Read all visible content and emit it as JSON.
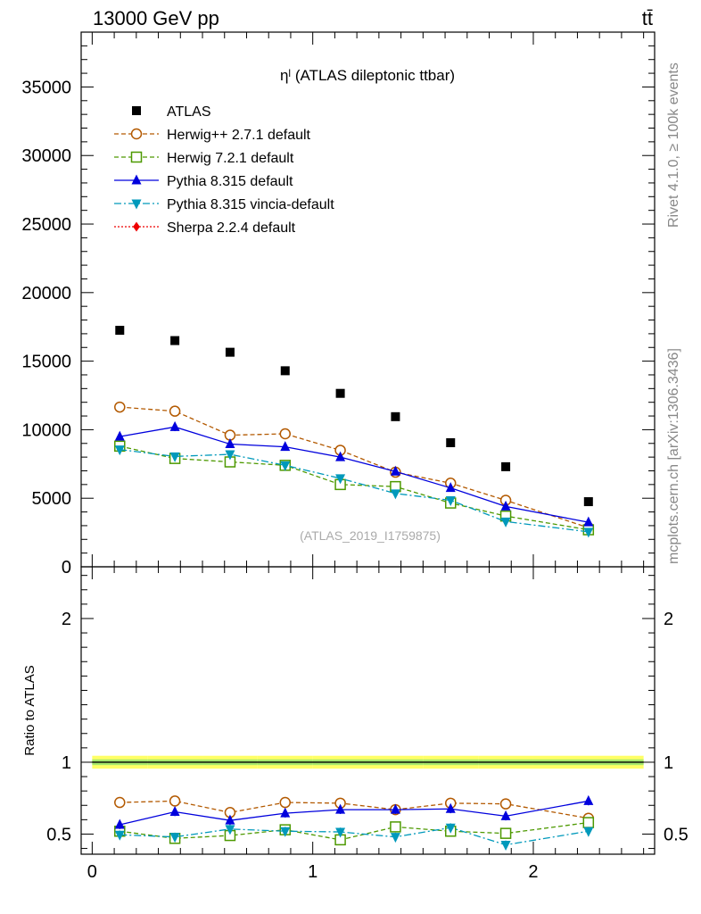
{
  "header": {
    "left": "13000 GeV pp",
    "right": "tt̄"
  },
  "side_text": {
    "rivet": "Rivet 4.1.0, ≥ 100k events",
    "site": "mcplots.cern.ch [arXiv:1306.3436]"
  },
  "chart_data": {
    "type": "scatter",
    "title": "ηˡ (ATLAS dileptonic ttbar)",
    "watermark": "(ATLAS_2019_I1759875)",
    "xlabel": "",
    "ylabel_main": "",
    "ylabel_ratio": "Ratio to ATLAS",
    "xlim": [
      -0.05,
      2.55
    ],
    "ylim_main": [
      0,
      39000
    ],
    "ylim_ratio": [
      0.36,
      2.36
    ],
    "x_ticks": [
      0,
      1,
      2
    ],
    "x_tick_labels": [
      "0",
      "1",
      "2"
    ],
    "y_ticks_main": [
      0,
      5000,
      10000,
      15000,
      20000,
      25000,
      30000,
      35000
    ],
    "y_tick_labels_main": [
      "0",
      "5000",
      "10000",
      "15000",
      "20000",
      "25000",
      "30000",
      "35000"
    ],
    "y_ticks_ratio": [
      0.5,
      1,
      2
    ],
    "y_tick_labels_ratio": [
      "0.5",
      "1",
      "2"
    ],
    "x": [
      0.125,
      0.375,
      0.625,
      0.875,
      1.125,
      1.375,
      1.625,
      1.875,
      2.25
    ],
    "x_edges": [
      0,
      0.25,
      0.5,
      0.75,
      1.0,
      1.25,
      1.5,
      1.75,
      2.0,
      2.5
    ],
    "data": {
      "name": "ATLAS",
      "values": [
        17250,
        16500,
        15650,
        14300,
        12650,
        10950,
        9050,
        7300,
        4750
      ]
    },
    "series": [
      {
        "name": "Herwig++ 2.7.1 default",
        "color": "#b35900",
        "marker": "circle-open",
        "dash": "5,3",
        "values": [
          11650,
          11350,
          9600,
          9700,
          8500,
          6900,
          6100,
          4850,
          2850
        ],
        "ratio": [
          0.72,
          0.73,
          0.65,
          0.72,
          0.715,
          0.67,
          0.715,
          0.71,
          0.61
        ]
      },
      {
        "name": "Herwig 7.2.1 default",
        "color": "#4d9900",
        "marker": "square-open",
        "dash": "5,3",
        "values": [
          8800,
          7900,
          7650,
          7400,
          6000,
          5850,
          4650,
          3700,
          2700
        ],
        "ratio": [
          0.52,
          0.47,
          0.49,
          0.53,
          0.46,
          0.55,
          0.52,
          0.505,
          0.58
        ]
      },
      {
        "name": "Pythia 8.315 default",
        "color": "#0000dd",
        "marker": "triangle-up",
        "dash": "",
        "values": [
          9500,
          10200,
          8950,
          8750,
          8000,
          6950,
          5750,
          4400,
          3250
        ],
        "ratio": [
          0.565,
          0.655,
          0.595,
          0.645,
          0.67,
          0.67,
          0.675,
          0.625,
          0.73
        ]
      },
      {
        "name": "Pythia 8.315 vincia-default",
        "color": "#0099bb",
        "marker": "triangle-down",
        "dash": "8,3,2,3",
        "values": [
          8550,
          8050,
          8200,
          7400,
          6450,
          5350,
          4850,
          3300,
          2550
        ],
        "ratio": [
          0.495,
          0.48,
          0.535,
          0.52,
          0.515,
          0.48,
          0.545,
          0.425,
          0.52
        ]
      },
      {
        "name": "Sherpa 2.2.4 default",
        "color": "#ee0000",
        "marker": "diamond",
        "dash": "2,2",
        "values": [],
        "ratio": []
      }
    ],
    "legend_position": "top-left"
  }
}
